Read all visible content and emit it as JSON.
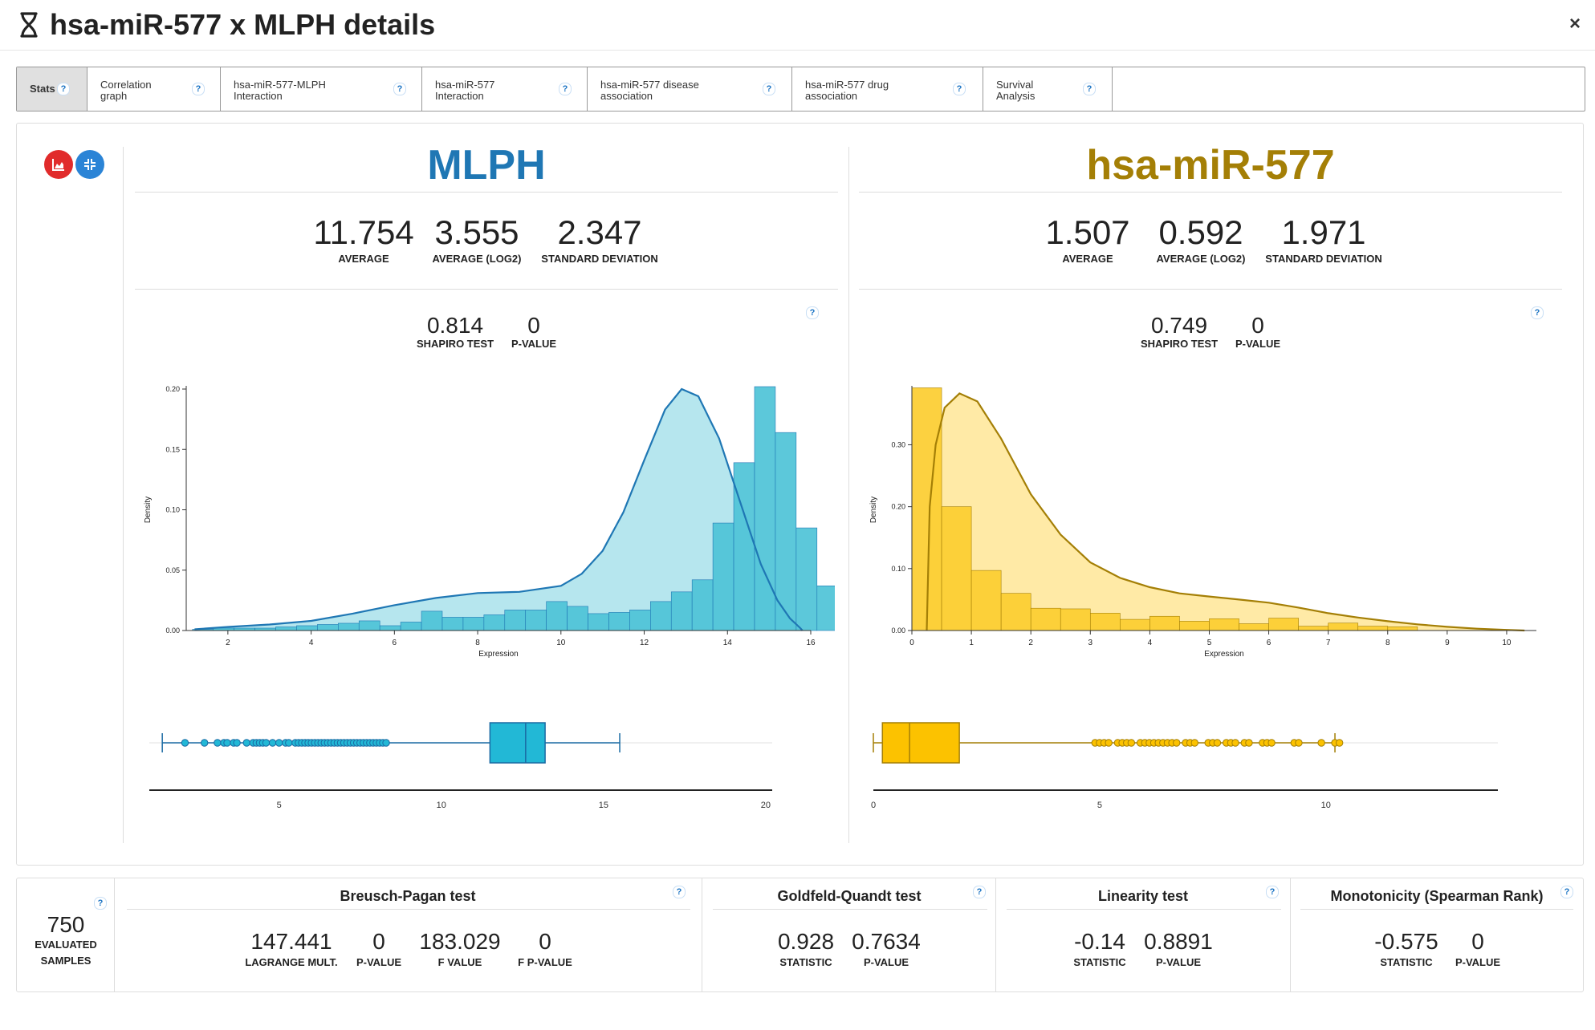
{
  "header": {
    "title": "hsa-miR-577 x MLPH details",
    "close_label": "×"
  },
  "tabs": [
    {
      "label": "Stats",
      "active": true
    },
    {
      "label": "Correlation graph",
      "active": false
    },
    {
      "label": "hsa-miR-577-MLPH Interaction",
      "active": false
    },
    {
      "label": "hsa-miR-577 Interaction",
      "active": false
    },
    {
      "label": "hsa-miR-577 disease association",
      "active": false
    },
    {
      "label": "hsa-miR-577 drug association",
      "active": false
    },
    {
      "label": "Survival Analysis",
      "active": false
    }
  ],
  "help_label": "?",
  "left": {
    "title": "MLPH",
    "color": "#1f77b4",
    "average": "11.754",
    "average_log2": "3.555",
    "std_dev": "2.347",
    "shapiro": "0.814",
    "p_value": "0"
  },
  "right": {
    "title": "hsa-miR-577",
    "color": "#a47f06",
    "average": "1.507",
    "average_log2": "0.592",
    "std_dev": "1.971",
    "shapiro": "0.749",
    "p_value": "0"
  },
  "labels": {
    "average": "AVERAGE",
    "average_log2": "AVERAGE (LOG2)",
    "std_dev": "STANDARD DEVIATION",
    "shapiro": "SHAPIRO TEST",
    "p_value": "P-VALUE",
    "statistic": "STATISTIC",
    "lagrange": "LAGRANGE MULT.",
    "f_value": "F VALUE",
    "f_p_value": "F P-VALUE",
    "evaluated": "EVALUATED",
    "samples": "SAMPLES"
  },
  "chart_data": [
    {
      "type": "bar",
      "name": "MLPH density histogram",
      "color": "#4ec3d7",
      "xlabel": "Expression",
      "ylabel": "Density",
      "xlim": [
        1,
        16
      ],
      "ylim": [
        0,
        0.2
      ],
      "xticks": [
        2,
        4,
        6,
        8,
        10,
        12,
        14,
        16
      ],
      "yticks": [
        "0.00",
        "0.05",
        "0.10",
        "0.15",
        "0.20"
      ],
      "bin_start": 1.15,
      "bin_width": 0.5,
      "values": [
        0.001,
        0.002,
        0.002,
        0.002,
        0.003,
        0.004,
        0.005,
        0.006,
        0.008,
        0.004,
        0.007,
        0.016,
        0.011,
        0.011,
        0.013,
        0.017,
        0.017,
        0.024,
        0.02,
        0.014,
        0.015,
        0.017,
        0.024,
        0.032,
        0.042,
        0.089,
        0.139,
        0.202,
        0.164,
        0.085,
        0.037,
        0.014,
        0.006
      ],
      "kde": [
        [
          1.2,
          0.001
        ],
        [
          2,
          0.003
        ],
        [
          3,
          0.005
        ],
        [
          4,
          0.008
        ],
        [
          5,
          0.014
        ],
        [
          6,
          0.021
        ],
        [
          7,
          0.027
        ],
        [
          8,
          0.031
        ],
        [
          9,
          0.032
        ],
        [
          10,
          0.037
        ],
        [
          10.5,
          0.047
        ],
        [
          11,
          0.066
        ],
        [
          11.5,
          0.098
        ],
        [
          12,
          0.141
        ],
        [
          12.5,
          0.183
        ],
        [
          12.9,
          0.2
        ],
        [
          13.3,
          0.194
        ],
        [
          13.8,
          0.159
        ],
        [
          14.3,
          0.107
        ],
        [
          14.8,
          0.055
        ],
        [
          15.2,
          0.025
        ],
        [
          15.5,
          0.01
        ],
        [
          15.75,
          0.002
        ],
        [
          15.8,
          0.0
        ]
      ]
    },
    {
      "type": "bar",
      "name": "hsa-miR-577 density histogram",
      "color": "#fccd30",
      "xlabel": "Expression",
      "ylabel": "Density",
      "xlim": [
        0,
        10.5
      ],
      "ylim": [
        0,
        0.39
      ],
      "xticks": [
        0,
        1,
        2,
        3,
        4,
        5,
        6,
        7,
        8,
        9,
        10
      ],
      "yticks": [
        "0.00",
        "0.10",
        "0.20",
        "0.30"
      ],
      "bin_start": 0,
      "bin_width": 0.5,
      "values": [
        0.392,
        0.2,
        0.097,
        0.06,
        0.036,
        0.035,
        0.028,
        0.018,
        0.023,
        0.015,
        0.019,
        0.011,
        0.02,
        0.007,
        0.012,
        0.007,
        0.006,
        0.0,
        0.0,
        0.0,
        0.0
      ],
      "kde": [
        [
          0.25,
          0.0
        ],
        [
          0.3,
          0.2
        ],
        [
          0.4,
          0.3
        ],
        [
          0.55,
          0.36
        ],
        [
          0.8,
          0.383
        ],
        [
          1.1,
          0.37
        ],
        [
          1.5,
          0.31
        ],
        [
          2,
          0.22
        ],
        [
          2.5,
          0.155
        ],
        [
          3,
          0.11
        ],
        [
          3.5,
          0.085
        ],
        [
          4,
          0.07
        ],
        [
          4.5,
          0.06
        ],
        [
          5,
          0.055
        ],
        [
          5.5,
          0.05
        ],
        [
          6,
          0.045
        ],
        [
          6.5,
          0.037
        ],
        [
          7,
          0.028
        ],
        [
          7.5,
          0.021
        ],
        [
          8,
          0.015
        ],
        [
          8.5,
          0.01
        ],
        [
          9,
          0.006
        ],
        [
          9.5,
          0.003
        ],
        [
          10,
          0.001
        ],
        [
          10.3,
          0.0
        ]
      ]
    },
    {
      "type": "box",
      "name": "MLPH box plot",
      "color": "#22b8d6",
      "edge": "#1a6aa3",
      "xlim": [
        1,
        20.2
      ],
      "xticks": [
        5,
        10,
        15,
        20
      ],
      "whisker_low": 1.4,
      "q1": 11.5,
      "median": 12.6,
      "q3": 13.2,
      "whisker_high": 15.5,
      "outliers": [
        2.1,
        2.7,
        3.1,
        3.3,
        3.4,
        3.6,
        3.7,
        4.0,
        4.2,
        4.3,
        4.4,
        4.5,
        4.6,
        4.8,
        5.0,
        5.2,
        5.3,
        5.5,
        5.6,
        5.7,
        5.8,
        5.9,
        6.0,
        6.1,
        6.2,
        6.3,
        6.4,
        6.5,
        6.6,
        6.7,
        6.8,
        6.9,
        7.0,
        7.1,
        7.2,
        7.3,
        7.4,
        7.5,
        7.6,
        7.7,
        7.8,
        7.9,
        8.0,
        8.1,
        8.2,
        8.3
      ]
    },
    {
      "type": "box",
      "name": "hsa-miR-577 box plot",
      "color": "#fcc200",
      "edge": "#a47f06",
      "xlim": [
        0,
        13.8
      ],
      "xticks": [
        0,
        5,
        10
      ],
      "whisker_low": 0.0,
      "q1": 0.2,
      "median": 0.8,
      "q3": 1.9,
      "whisker_high": 10.2,
      "outliers": [
        4.9,
        5.0,
        5.1,
        5.2,
        5.4,
        5.5,
        5.6,
        5.7,
        5.9,
        6.0,
        6.1,
        6.2,
        6.3,
        6.4,
        6.5,
        6.6,
        6.7,
        6.9,
        7.0,
        7.1,
        7.4,
        7.5,
        7.6,
        7.8,
        7.9,
        8.0,
        8.2,
        8.3,
        8.6,
        8.7,
        8.8,
        9.3,
        9.4,
        9.9,
        10.2,
        10.3
      ]
    }
  ],
  "bottom": {
    "samples_count": "750",
    "breusch": {
      "title": "Breusch-Pagan test",
      "lagrange": "147.441",
      "p_value": "0",
      "f_value": "183.029",
      "f_p_value": "0"
    },
    "goldfeld": {
      "title": "Goldfeld-Quandt test",
      "statistic": "0.928",
      "p_value": "0.7634"
    },
    "linearity": {
      "title": "Linearity test",
      "statistic": "-0.14",
      "p_value": "0.8891"
    },
    "monotonicity": {
      "title": "Monotonicity (Spearman Rank)",
      "statistic": "-0.575",
      "p_value": "0"
    }
  }
}
